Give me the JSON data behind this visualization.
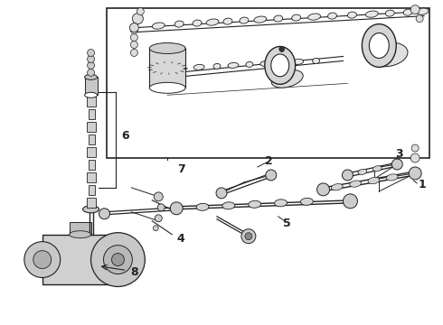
{
  "bg_color": "#ffffff",
  "line_color": "#222222",
  "fig_width": 4.9,
  "fig_height": 3.6,
  "dpi": 100,
  "label_fontsize": 9
}
